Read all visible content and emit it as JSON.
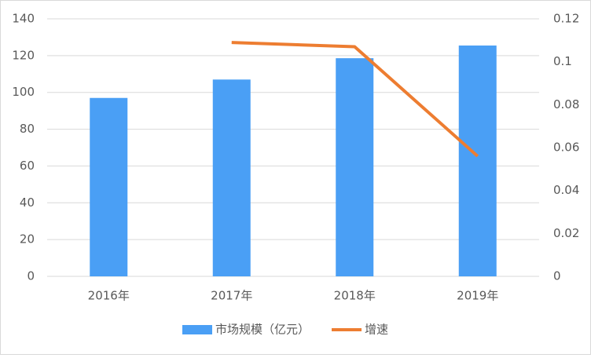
{
  "chart_data": {
    "type": "bar",
    "categories": [
      "2016年",
      "2017年",
      "2018年",
      "2019年"
    ],
    "series": [
      {
        "name": "市场规模（亿元）",
        "type": "bar",
        "color": "#4a9ff5",
        "values": [
          97,
          107,
          118.6,
          125.5
        ]
      },
      {
        "name": "增速",
        "type": "line",
        "axis": "y2",
        "color": "#ed7d31",
        "values": [
          null,
          0.109,
          0.107,
          0.056
        ]
      }
    ],
    "ylim": [
      0,
      140
    ],
    "yticks": [
      0,
      20,
      40,
      60,
      80,
      100,
      120,
      140
    ],
    "y2lim": [
      0,
      0.12
    ],
    "y2ticks": [
      0,
      0.02,
      0.04,
      0.06,
      0.08,
      0.1,
      0.12
    ],
    "grid": true,
    "legend": "bottom"
  }
}
